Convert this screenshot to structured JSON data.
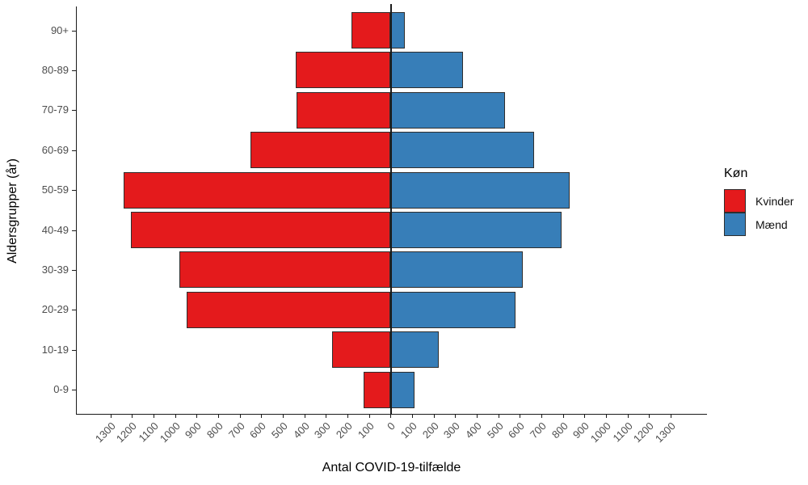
{
  "chart_data": {
    "type": "bar",
    "variant": "population-pyramid",
    "xlabel": "Antal COVID-19-tilfælde",
    "ylabel": "Aldersgrupper (år)",
    "categories_top_to_bottom": [
      "90+",
      "80-89",
      "70-79",
      "60-69",
      "50-59",
      "40-49",
      "30-39",
      "20-29",
      "10-19",
      "0-9"
    ],
    "series": [
      {
        "name": "Kvinder",
        "side": "left",
        "color": "#E41A1C",
        "values": [
          180,
          440,
          435,
          650,
          1240,
          1205,
          980,
          945,
          270,
          125
        ]
      },
      {
        "name": "Mænd",
        "side": "right",
        "color": "#377EB8",
        "values": [
          65,
          335,
          530,
          665,
          830,
          795,
          615,
          580,
          225,
          110
        ]
      }
    ],
    "xlim": [
      -1300,
      1300
    ],
    "x_tick_step": 100,
    "x_tick_labels": [
      "1300",
      "1200",
      "1100",
      "1000",
      "900",
      "800",
      "700",
      "600",
      "500",
      "400",
      "300",
      "200",
      "100",
      "0",
      "100",
      "200",
      "300",
      "400",
      "500",
      "600",
      "700",
      "800",
      "900",
      "1000",
      "1100",
      "1200",
      "1300"
    ],
    "legend": {
      "title": "Køn",
      "position": "right"
    },
    "grid": false,
    "background": "#ffffff"
  },
  "colors": {
    "bar_border": "#2e2e2e",
    "axis_line": "#1a1a1a",
    "tick_text": "#4d4d4d",
    "title_text": "#000000"
  }
}
